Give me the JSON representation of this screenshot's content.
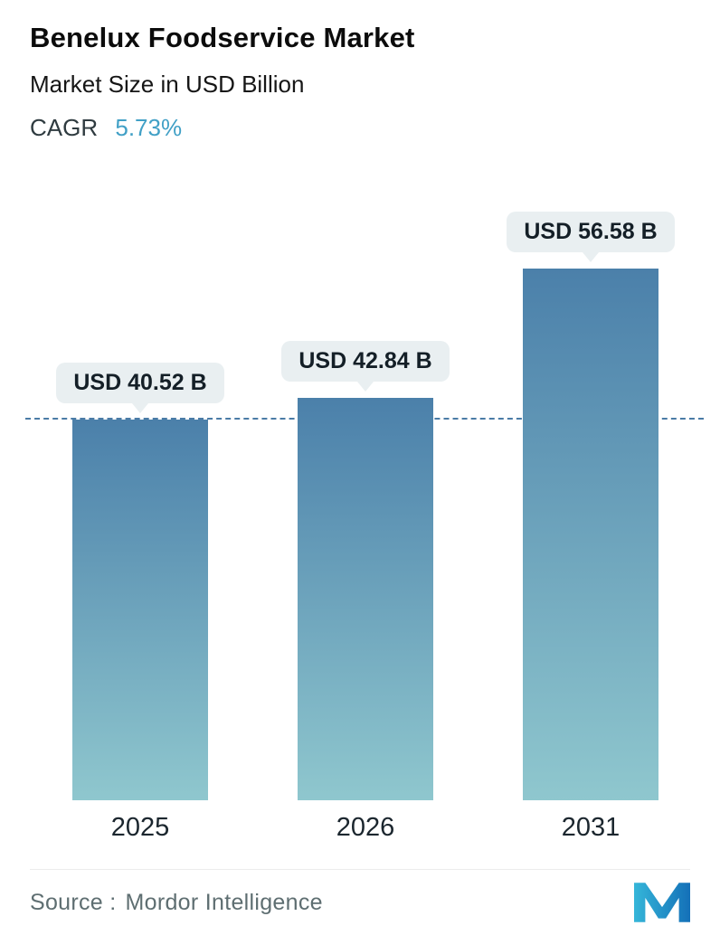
{
  "header": {
    "title": "Benelux Foodservice Market",
    "subtitle": "Market Size in USD Billion",
    "cagr_label": "CAGR",
    "cagr_value": "5.73%"
  },
  "chart_data": {
    "type": "bar",
    "categories": [
      "2025",
      "2026",
      "2031"
    ],
    "values": [
      40.52,
      42.84,
      56.58
    ],
    "value_labels": [
      "USD 40.52 B",
      "USD 42.84 B",
      "USD 56.58 B"
    ],
    "title": "Benelux Foodservice Market",
    "subtitle": "Market Size in USD Billion",
    "cagr": "5.73%",
    "ylabel": "Market Size in USD Billion",
    "xlabel": "",
    "baseline_value": 40.52,
    "grid": false,
    "legend": "none",
    "bar_gradient_top": "#4b80aa",
    "bar_gradient_bottom": "#8fc7ce",
    "dashed_line_color": "#4a7ba6",
    "bubble_bg": "#e9eff1"
  },
  "footer": {
    "source_label": "Source :",
    "source_value": "Mordor Intelligence"
  },
  "colors": {
    "cagr_accent": "#41a0c6",
    "logo_light": "#35b6d9",
    "logo_dark": "#1470b8"
  }
}
